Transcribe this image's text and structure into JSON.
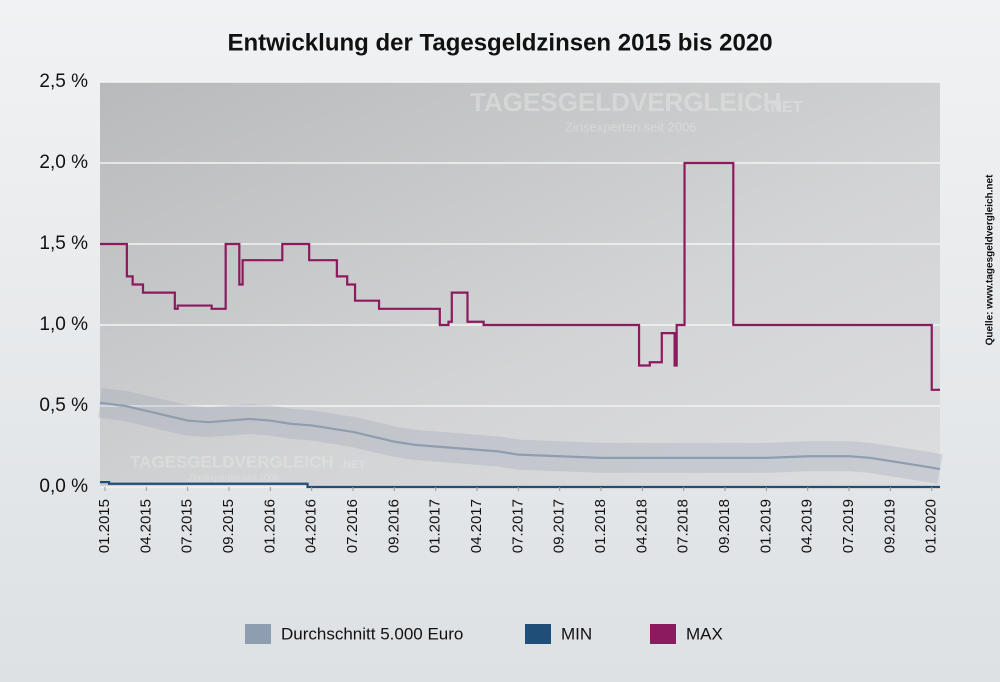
{
  "chart_data": {
    "type": "line",
    "title": "Entwicklung der Tagesgeldzinsen 2015 bis 2020",
    "source": "Quelle: www.tagesgeldvergleich.net",
    "watermark": {
      "name": "TAGESGELDVERGLEICH",
      "suffix": ".NET",
      "tagline": "Zinsexperten seit 2006"
    },
    "xlim": [
      -0.12,
      20.2
    ],
    "xticks": [
      {
        "value": 0,
        "label": "01.2015"
      },
      {
        "value": 1,
        "label": "04.2015"
      },
      {
        "value": 2,
        "label": "07.2015"
      },
      {
        "value": 3,
        "label": "09.2015"
      },
      {
        "value": 4,
        "label": "01.2016"
      },
      {
        "value": 5,
        "label": "04.2016"
      },
      {
        "value": 6,
        "label": "07.2016"
      },
      {
        "value": 7,
        "label": "09.2016"
      },
      {
        "value": 8,
        "label": "01.2017"
      },
      {
        "value": 9,
        "label": "04.2017"
      },
      {
        "value": 10,
        "label": "07.2017"
      },
      {
        "value": 11,
        "label": "09.2017"
      },
      {
        "value": 12,
        "label": "01.2018"
      },
      {
        "value": 13,
        "label": "04.2018"
      },
      {
        "value": 14,
        "label": "07.2018"
      },
      {
        "value": 15,
        "label": "09.2018"
      },
      {
        "value": 16,
        "label": "01.2019"
      },
      {
        "value": 17,
        "label": "04.2019"
      },
      {
        "value": 18,
        "label": "07.2019"
      },
      {
        "value": 19,
        "label": "09.2019"
      },
      {
        "value": 20,
        "label": "01.2020"
      }
    ],
    "ylim": [
      0,
      2.5
    ],
    "yticks": [
      {
        "value": 0,
        "label": "0,0 %"
      },
      {
        "value": 0.5,
        "label": "0,5 %"
      },
      {
        "value": 1,
        "label": "1,0 %"
      },
      {
        "value": 1.5,
        "label": "1,5 %"
      },
      {
        "value": 2,
        "label": "2,0 %"
      },
      {
        "value": 2.5,
        "label": "2,5 %"
      }
    ],
    "grid": true,
    "legend": "bottom",
    "series": [
      {
        "name": "Durchschnitt 5.000 Euro",
        "color": "#8f9db0",
        "step": false,
        "x": [
          -0.12,
          0.5,
          1,
          1.5,
          2,
          2.5,
          3,
          3.5,
          4,
          4.5,
          5,
          5.5,
          6,
          6.5,
          7,
          7.5,
          8,
          8.5,
          9,
          9.5,
          10,
          11,
          12,
          13,
          14,
          15,
          16,
          17,
          18,
          18.5,
          19,
          19.5,
          20,
          20.2
        ],
        "values": [
          0.52,
          0.5,
          0.47,
          0.44,
          0.41,
          0.4,
          0.41,
          0.42,
          0.41,
          0.39,
          0.38,
          0.36,
          0.34,
          0.31,
          0.28,
          0.26,
          0.25,
          0.24,
          0.23,
          0.22,
          0.2,
          0.19,
          0.18,
          0.18,
          0.18,
          0.18,
          0.18,
          0.19,
          0.19,
          0.18,
          0.16,
          0.14,
          0.12,
          0.11
        ]
      },
      {
        "name": "MIN",
        "color": "#1f4e79",
        "step": true,
        "x": [
          -0.12,
          0.1,
          4.9,
          20.2
        ],
        "values": [
          0.03,
          0.02,
          0,
          0
        ]
      },
      {
        "name": "MAX",
        "color": "#8b1a5e",
        "step": true,
        "x": [
          -0.12,
          0.53,
          0.67,
          0.92,
          1.69,
          1.76,
          2.58,
          2.92,
          3.25,
          3.33,
          4.29,
          4.94,
          5.61,
          5.86,
          6.05,
          6.63,
          8.1,
          8.31,
          8.39,
          8.77,
          9.16,
          12.92,
          13.18,
          13.47,
          13.78,
          13.83,
          14.02,
          15.2,
          20.0,
          20.2
        ],
        "values": [
          1.5,
          1.3,
          1.25,
          1.2,
          1.1,
          1.12,
          1.1,
          1.5,
          1.25,
          1.4,
          1.5,
          1.4,
          1.3,
          1.25,
          1.15,
          1.1,
          1.0,
          1.02,
          1.2,
          1.02,
          1.0,
          0.75,
          0.77,
          0.95,
          0.75,
          1.0,
          2.0,
          1.0,
          0.6,
          0.6
        ]
      }
    ]
  }
}
